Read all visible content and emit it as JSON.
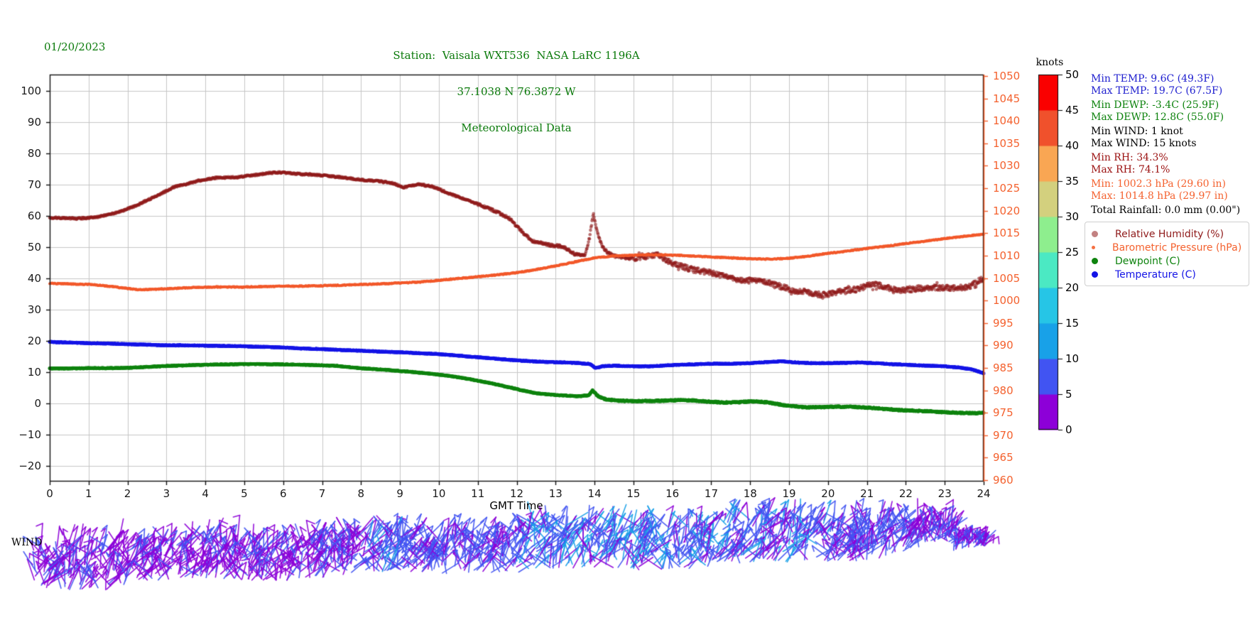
{
  "header": {
    "date": "01/20/2023",
    "title_line1": "Station:  Vaisala WXT536  NASA LaRC 1196A",
    "title_line2": "37.1038 N 76.3872 W",
    "title_line3": "Meteorological Data",
    "title_color": "#0a7a0a"
  },
  "stats": {
    "lines": [
      {
        "text": "Min TEMP: 9.6C (49.3F)",
        "color": "#2020cf",
        "group": 0
      },
      {
        "text": "Max TEMP: 19.7C (67.5F)",
        "color": "#2020cf",
        "group": 0
      },
      {
        "text": "Min DEWP: -3.4C (25.9F)",
        "color": "#0e830e",
        "group": 1
      },
      {
        "text": "Max DEWP: 12.8C (55.0F)",
        "color": "#0e830e",
        "group": 1
      },
      {
        "text": "Min WIND: 1 knot",
        "color": "#000000",
        "group": 2
      },
      {
        "text": "Max WIND: 15 knots",
        "color": "#000000",
        "group": 2
      },
      {
        "text": "Min RH: 34.3%",
        "color": "#9b1111",
        "group": 3
      },
      {
        "text": "Max RH: 74.1%",
        "color": "#9b1111",
        "group": 3
      },
      {
        "text": "Min: 1002.3 hPa (29.60 in)",
        "color": "#f4612e",
        "group": 4
      },
      {
        "text": "Max: 1014.8 hPa (29.97 in)",
        "color": "#f4612e",
        "group": 4
      },
      {
        "text": "Total Rainfall: 0.0 mm (0.00\")",
        "color": "#000000",
        "group": 5
      }
    ]
  },
  "legend": {
    "position": "right-middle",
    "items": [
      {
        "label": "Relative Humidity (%)",
        "color": "#8f1a1a",
        "marker_size": 9,
        "marker_alpha": 0.55
      },
      {
        "label": "Barometric Pressure (hPa)",
        "color": "#f4612e",
        "marker_size": 5,
        "marker_alpha": 0.9
      },
      {
        "label": "Dewpoint (C)",
        "color": "#0e830e",
        "marker_size": 9,
        "marker_alpha": 1
      },
      {
        "label": "Temperature (C)",
        "color": "#1414e6",
        "marker_size": 9,
        "marker_alpha": 1
      }
    ]
  },
  "chart_data": {
    "type": "scatter",
    "title": "Station:  Vaisala WXT536  NASA LaRC 1196A / 37.1038 N 76.3872 W / Meteorological Data",
    "xlabel": "GMT Time",
    "x_ticks": [
      0,
      1,
      2,
      3,
      4,
      5,
      6,
      7,
      8,
      9,
      10,
      11,
      12,
      13,
      14,
      15,
      16,
      17,
      18,
      19,
      20,
      21,
      22,
      23,
      24
    ],
    "xlim": [
      0,
      24
    ],
    "grid": true,
    "left_axis": {
      "ticks": [
        -20,
        -10,
        0,
        10,
        20,
        30,
        40,
        50,
        60,
        70,
        80,
        90,
        100
      ],
      "ylim": [
        -25,
        105.3
      ],
      "color": "#1a1a1a"
    },
    "right_axis": {
      "ticks": [
        960,
        965,
        970,
        975,
        980,
        985,
        990,
        995,
        1000,
        1005,
        1010,
        1015,
        1020,
        1025,
        1030,
        1035,
        1040,
        1045,
        1050
      ],
      "ylim": [
        959.7,
        1050.3
      ],
      "color": "#f4612e"
    },
    "series": [
      {
        "name": "Relative Humidity (%)",
        "axis": "left",
        "color": "#8f1a1a",
        "marker_r": 2.3,
        "alpha": 0.62,
        "points": [
          [
            0,
            59.5
          ],
          [
            0.7,
            59.2
          ],
          [
            1.2,
            59.6
          ],
          [
            1.7,
            61
          ],
          [
            2.2,
            63.2
          ],
          [
            2.7,
            66.2
          ],
          [
            3.2,
            69.3
          ],
          [
            3.8,
            71.2
          ],
          [
            4.3,
            72.3
          ],
          [
            4.8,
            72.4
          ],
          [
            5.3,
            73.2
          ],
          [
            5.8,
            74
          ],
          [
            6.3,
            73.6
          ],
          [
            7,
            73
          ],
          [
            7.5,
            72.4
          ],
          [
            8,
            71.6
          ],
          [
            8.4,
            71.2
          ],
          [
            8.8,
            70.6
          ],
          [
            9.1,
            69.2
          ],
          [
            9.5,
            70.2
          ],
          [
            9.9,
            69.2
          ],
          [
            10.3,
            67
          ],
          [
            10.8,
            64.8
          ],
          [
            11.3,
            62.4
          ],
          [
            11.8,
            59.4
          ],
          [
            12.1,
            55.4
          ],
          [
            12.4,
            52
          ],
          [
            12.8,
            50.8
          ],
          [
            13.2,
            50.2
          ],
          [
            13.5,
            47.8
          ],
          [
            13.75,
            47.2
          ],
          [
            13.87,
            53
          ],
          [
            13.97,
            60.8
          ],
          [
            14.07,
            55
          ],
          [
            14.2,
            50
          ],
          [
            14.35,
            48.2
          ],
          [
            14.5,
            47.2
          ],
          [
            14.8,
            46.6
          ],
          [
            15.1,
            46.4
          ],
          [
            15.4,
            47.2
          ],
          [
            15.6,
            47.6
          ],
          [
            15.9,
            45.4
          ],
          [
            16.2,
            44
          ],
          [
            16.6,
            42.6
          ],
          [
            17,
            41.8
          ],
          [
            17.4,
            40.4
          ],
          [
            17.8,
            39.2
          ],
          [
            18.2,
            39.6
          ],
          [
            18.5,
            38.8
          ],
          [
            18.8,
            37.4
          ],
          [
            19.1,
            36.2
          ],
          [
            19.5,
            35.6
          ],
          [
            19.8,
            34.8
          ],
          [
            20.1,
            35.2
          ],
          [
            20.4,
            36.2
          ],
          [
            20.8,
            36.6
          ],
          [
            21.1,
            38.2
          ],
          [
            21.4,
            37.6
          ],
          [
            21.8,
            36.2
          ],
          [
            22.2,
            36.6
          ],
          [
            22.6,
            37.2
          ],
          [
            23,
            37
          ],
          [
            23.4,
            36.8
          ],
          [
            23.7,
            37.8
          ],
          [
            24,
            40.3
          ]
        ]
      },
      {
        "name": "Barometric Pressure (hPa)",
        "axis": "right",
        "color": "#f2582a",
        "marker_r": 1.9,
        "alpha": 0.95,
        "points": [
          [
            0,
            1003.8
          ],
          [
            0.5,
            1003.7
          ],
          [
            1,
            1003.6
          ],
          [
            1.5,
            1003.2
          ],
          [
            2,
            1002.7
          ],
          [
            2.3,
            1002.4
          ],
          [
            2.7,
            1002.5
          ],
          [
            3.2,
            1002.7
          ],
          [
            3.7,
            1002.9
          ],
          [
            4.2,
            1003
          ],
          [
            5,
            1003
          ],
          [
            5.5,
            1003.1
          ],
          [
            6,
            1003.2
          ],
          [
            6.5,
            1003.2
          ],
          [
            7,
            1003.3
          ],
          [
            7.5,
            1003.4
          ],
          [
            8,
            1003.6
          ],
          [
            8.5,
            1003.7
          ],
          [
            9,
            1003.9
          ],
          [
            9.5,
            1004.1
          ],
          [
            10,
            1004.5
          ],
          [
            10.5,
            1004.9
          ],
          [
            11,
            1005.3
          ],
          [
            11.5,
            1005.7
          ],
          [
            12,
            1006.2
          ],
          [
            12.5,
            1006.9
          ],
          [
            13,
            1007.7
          ],
          [
            13.5,
            1008.6
          ],
          [
            14,
            1009.5
          ],
          [
            14.5,
            1009.9
          ],
          [
            15,
            1010.1
          ],
          [
            15.5,
            1010.2
          ],
          [
            16,
            1010.1
          ],
          [
            16.5,
            1009.9
          ],
          [
            17,
            1009.7
          ],
          [
            17.5,
            1009.5
          ],
          [
            18,
            1009.3
          ],
          [
            18.5,
            1009.2
          ],
          [
            19,
            1009.4
          ],
          [
            19.5,
            1009.9
          ],
          [
            20,
            1010.5
          ],
          [
            20.5,
            1011
          ],
          [
            21,
            1011.6
          ],
          [
            21.5,
            1012.1
          ],
          [
            22,
            1012.7
          ],
          [
            22.5,
            1013.2
          ],
          [
            23,
            1013.8
          ],
          [
            23.5,
            1014.3
          ],
          [
            24,
            1014.8
          ]
        ]
      },
      {
        "name": "Dewpoint (C)",
        "axis": "left",
        "color": "#0e830e",
        "marker_r": 2.5,
        "alpha": 1,
        "points": [
          [
            0,
            11.2
          ],
          [
            0.5,
            11.2
          ],
          [
            1,
            11.3
          ],
          [
            1.5,
            11.3
          ],
          [
            2,
            11.4
          ],
          [
            2.5,
            11.7
          ],
          [
            3,
            12
          ],
          [
            3.5,
            12.2
          ],
          [
            4,
            12.4
          ],
          [
            4.5,
            12.5
          ],
          [
            5,
            12.6
          ],
          [
            5.5,
            12.6
          ],
          [
            6,
            12.5
          ],
          [
            6.5,
            12.4
          ],
          [
            7,
            12.2
          ],
          [
            7.4,
            12
          ],
          [
            7.8,
            11.5
          ],
          [
            8.2,
            11.1
          ],
          [
            8.6,
            10.8
          ],
          [
            9,
            10.4
          ],
          [
            9.4,
            10
          ],
          [
            9.8,
            9.5
          ],
          [
            10.2,
            8.9
          ],
          [
            10.6,
            8.2
          ],
          [
            11,
            7.3
          ],
          [
            11.4,
            6.3
          ],
          [
            11.8,
            5.2
          ],
          [
            12.1,
            4.3
          ],
          [
            12.4,
            3.5
          ],
          [
            12.7,
            3
          ],
          [
            13,
            2.7
          ],
          [
            13.3,
            2.5
          ],
          [
            13.6,
            2.3
          ],
          [
            13.85,
            2.6
          ],
          [
            13.95,
            4.2
          ],
          [
            14.1,
            2.2
          ],
          [
            14.3,
            1.3
          ],
          [
            14.6,
            0.9
          ],
          [
            15,
            0.7
          ],
          [
            15.4,
            0.8
          ],
          [
            15.8,
            0.9
          ],
          [
            16.2,
            1.1
          ],
          [
            16.5,
            1
          ],
          [
            16.9,
            0.6
          ],
          [
            17.3,
            0.3
          ],
          [
            17.7,
            0.4
          ],
          [
            18.1,
            0.7
          ],
          [
            18.4,
            0.4
          ],
          [
            18.7,
            -0.2
          ],
          [
            19,
            -0.8
          ],
          [
            19.4,
            -1.2
          ],
          [
            19.8,
            -1.2
          ],
          [
            20.2,
            -1
          ],
          [
            20.6,
            -1.1
          ],
          [
            21,
            -1.3
          ],
          [
            21.4,
            -1.7
          ],
          [
            21.8,
            -2.1
          ],
          [
            22.2,
            -2.3
          ],
          [
            22.6,
            -2.5
          ],
          [
            23,
            -2.8
          ],
          [
            23.4,
            -3
          ],
          [
            23.8,
            -3.1
          ],
          [
            24,
            -3
          ]
        ]
      },
      {
        "name": "Temperature (C)",
        "axis": "left",
        "color": "#1414e6",
        "marker_r": 2.5,
        "alpha": 1,
        "points": [
          [
            0,
            19.7
          ],
          [
            0.5,
            19.5
          ],
          [
            1,
            19.3
          ],
          [
            1.5,
            19.2
          ],
          [
            2,
            19
          ],
          [
            2.5,
            18.8
          ],
          [
            3,
            18.6
          ],
          [
            3.5,
            18.6
          ],
          [
            4,
            18.5
          ],
          [
            4.5,
            18.4
          ],
          [
            5,
            18.3
          ],
          [
            5.5,
            18.1
          ],
          [
            6,
            17.9
          ],
          [
            6.5,
            17.6
          ],
          [
            7,
            17.4
          ],
          [
            7.5,
            17.1
          ],
          [
            8,
            16.9
          ],
          [
            8.5,
            16.6
          ],
          [
            9,
            16.4
          ],
          [
            9.5,
            16.1
          ],
          [
            10,
            15.8
          ],
          [
            10.5,
            15.3
          ],
          [
            11,
            14.8
          ],
          [
            11.5,
            14.3
          ],
          [
            12,
            13.8
          ],
          [
            12.5,
            13.4
          ],
          [
            13,
            13.2
          ],
          [
            13.5,
            13
          ],
          [
            13.9,
            12.6
          ],
          [
            14.02,
            11.4
          ],
          [
            14.2,
            11.9
          ],
          [
            14.5,
            12.1
          ],
          [
            15,
            11.9
          ],
          [
            15.5,
            11.9
          ],
          [
            16,
            12.3
          ],
          [
            16.5,
            12.5
          ],
          [
            17,
            12.7
          ],
          [
            17.5,
            12.7
          ],
          [
            18,
            12.9
          ],
          [
            18.4,
            13.2
          ],
          [
            18.8,
            13.5
          ],
          [
            19.2,
            13.1
          ],
          [
            19.6,
            12.9
          ],
          [
            20,
            12.9
          ],
          [
            20.4,
            13
          ],
          [
            20.8,
            13.1
          ],
          [
            21.2,
            12.9
          ],
          [
            21.6,
            12.6
          ],
          [
            22,
            12.4
          ],
          [
            22.5,
            12.1
          ],
          [
            23,
            11.9
          ],
          [
            23.4,
            11.5
          ],
          [
            23.7,
            10.9
          ],
          [
            24,
            9.7
          ]
        ]
      }
    ],
    "colorbar": {
      "title": "knots",
      "ticks": [
        0,
        5,
        10,
        15,
        20,
        25,
        30,
        35,
        40,
        45,
        50
      ],
      "colors_bottom_to_top": [
        "#8d00d8",
        "#4154f2",
        "#18a1e8",
        "#26c5e6",
        "#4be9c3",
        "#8eee8e",
        "#d3d07e",
        "#f9a653",
        "#f0512c",
        "#fa0000"
      ]
    },
    "wind_barbs": {
      "label": "WIND",
      "min_knots": 1,
      "max_knots": 15,
      "hourly_speed_knots": [
        5,
        4,
        4,
        4,
        5,
        5,
        5,
        6,
        8,
        7,
        6,
        7,
        9,
        10,
        10,
        9,
        10,
        9,
        9,
        8,
        7,
        7,
        6,
        5,
        3
      ]
    }
  }
}
